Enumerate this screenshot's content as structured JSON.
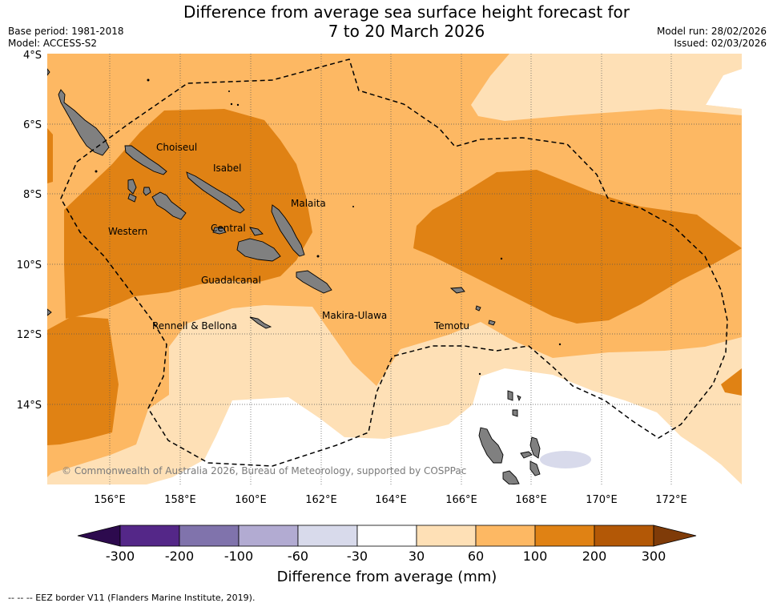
{
  "title": {
    "line1": "Difference from average sea surface height forecast for",
    "line2": "7 to 20 March 2026"
  },
  "meta_left": {
    "base_period": "Base period: 1981-2018",
    "model": "Model: ACCESS-S2"
  },
  "meta_right": {
    "model_run": "Model run: 28/02/2026",
    "issued": "Issued: 02/03/2026"
  },
  "map": {
    "lat_labels": [
      "4°S",
      "6°S",
      "8°S",
      "10°S",
      "12°S",
      "14°S"
    ],
    "lon_labels": [
      "156°E",
      "158°E",
      "160°E",
      "162°E",
      "164°E",
      "166°E",
      "168°E",
      "170°E",
      "172°E"
    ],
    "place_labels": [
      {
        "id": "choiseul",
        "text": "Choiseul"
      },
      {
        "id": "isabel",
        "text": "Isabel"
      },
      {
        "id": "malaita",
        "text": "Malaita"
      },
      {
        "id": "western",
        "text": "Western"
      },
      {
        "id": "central",
        "text": "Central"
      },
      {
        "id": "guadalcanal",
        "text": "Guadalcanal"
      },
      {
        "id": "rennell",
        "text": "Rennell & Bellona"
      },
      {
        "id": "makira",
        "text": "Makira-Ulawa"
      },
      {
        "id": "temotu",
        "text": "Temotu"
      }
    ],
    "copyright": "© Commonwealth of Australia 2026, Bureau of Meteorology, supported by COSPPac"
  },
  "colorbar": {
    "label": "Difference from average (mm)",
    "ticks": [
      "-300",
      "-200",
      "-100",
      "-60",
      "-30",
      "30",
      "60",
      "100",
      "200",
      "300"
    ],
    "colors": {
      "lt_300": "#2d0a4e",
      "m300_m200": "#542788",
      "m200_m100": "#8073ac",
      "m100_m60": "#b2abd2",
      "m60_m30": "#d8daeb",
      "m30_30": "#ffffff",
      "30_60": "#fee0b6",
      "60_100": "#fdb863",
      "100_200": "#e08214",
      "200_300": "#b35806",
      "gt_300": "#7f3b08"
    }
  },
  "footer": "--  --  -- EEZ border V11 (Flanders Marine Institute, 2019)."
}
